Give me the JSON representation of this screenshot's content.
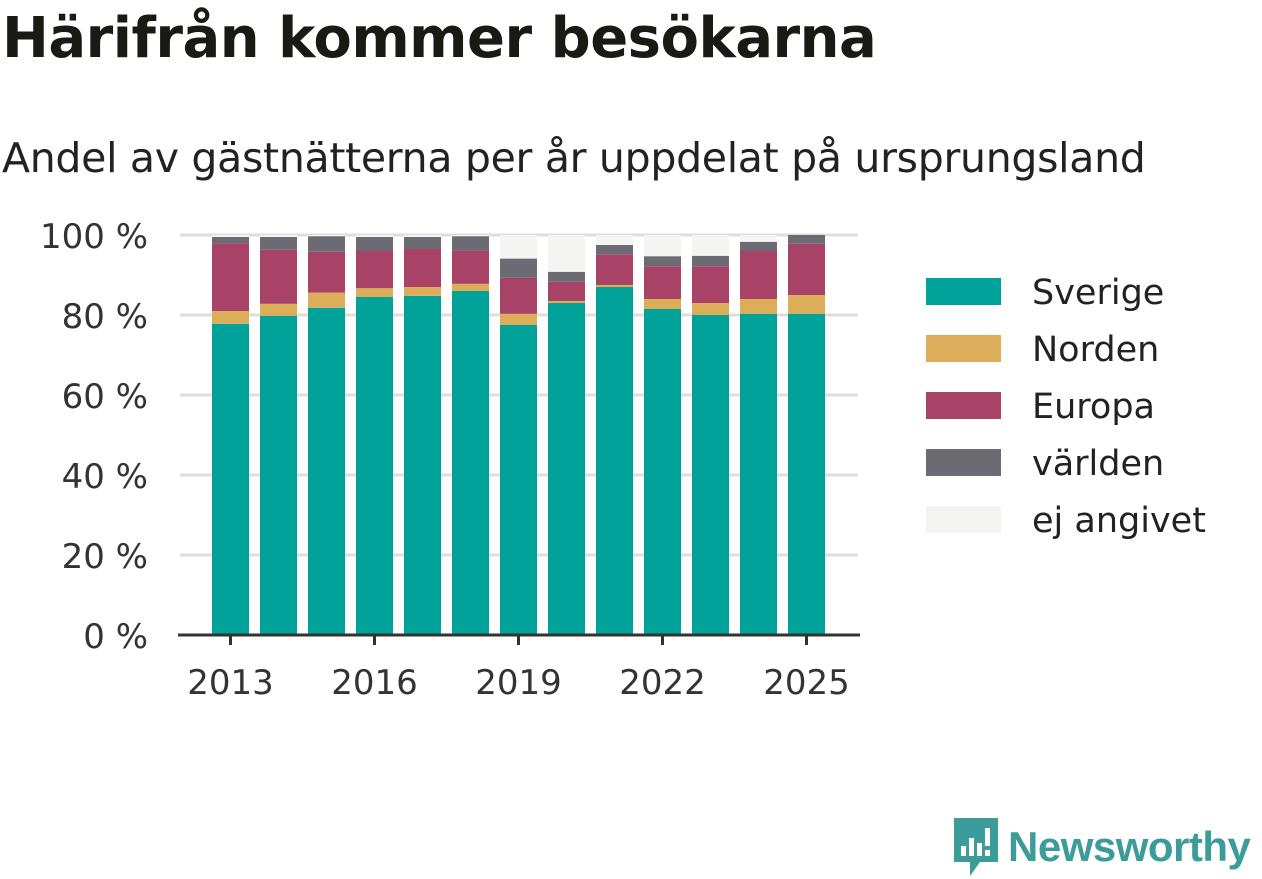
{
  "title": "Härifrån kommer besökarna",
  "subtitle": "Andel av gästnätterna per år uppdelat på ursprungsland",
  "brand": "Newsworthy",
  "colors": {
    "sverige": "#00a29a",
    "norden": "#dcae5a",
    "europa": "#a84266",
    "varlden": "#6c6b73",
    "ej_angivet": "#f4f4f3",
    "grid": "#dedede",
    "axis": "#333333",
    "brand": "#3c9c99"
  },
  "chart_data": {
    "type": "bar",
    "stacked": true,
    "categories": [
      "2013",
      "2014",
      "2015",
      "2016",
      "2017",
      "2018",
      "2019",
      "2020",
      "2021",
      "2022",
      "2023",
      "2024",
      "2025"
    ],
    "x_tick_labels": [
      "2013",
      "2016",
      "2019",
      "2022",
      "2025"
    ],
    "y_ticks": [
      0,
      20,
      40,
      60,
      80,
      100
    ],
    "y_tick_labels": [
      "0 %",
      "20 %",
      "40 %",
      "60 %",
      "80 %",
      "100 %"
    ],
    "ylim": [
      0,
      100
    ],
    "grid": true,
    "legend_position": "right",
    "series": [
      {
        "name": "Sverige",
        "color_key": "sverige",
        "values": [
          77.8,
          79.8,
          81.8,
          84.5,
          84.8,
          86.0,
          77.5,
          83.0,
          87.0,
          81.5,
          80.0,
          80.3,
          80.3
        ]
      },
      {
        "name": "Norden",
        "color_key": "norden",
        "values": [
          3.2,
          3.0,
          3.8,
          2.2,
          2.2,
          1.8,
          2.8,
          0.5,
          0.5,
          2.5,
          3.0,
          3.7,
          4.7
        ]
      },
      {
        "name": "Europa",
        "color_key": "europa",
        "values": [
          16.9,
          13.5,
          10.2,
          9.3,
          9.5,
          8.3,
          9.0,
          4.8,
          7.7,
          8.2,
          9.2,
          12.0,
          12.8
        ]
      },
      {
        "name": "världen",
        "color_key": "varlden",
        "values": [
          1.6,
          3.2,
          3.9,
          3.5,
          3.0,
          3.6,
          4.8,
          2.5,
          2.3,
          2.5,
          2.6,
          2.3,
          2.2
        ]
      },
      {
        "name": "ej angivet",
        "color_key": "ej_angivet",
        "values": [
          0.5,
          0.5,
          0.3,
          0.5,
          0.5,
          0.3,
          5.9,
          9.2,
          2.5,
          5.3,
          5.2,
          1.7,
          0.0
        ]
      }
    ]
  }
}
